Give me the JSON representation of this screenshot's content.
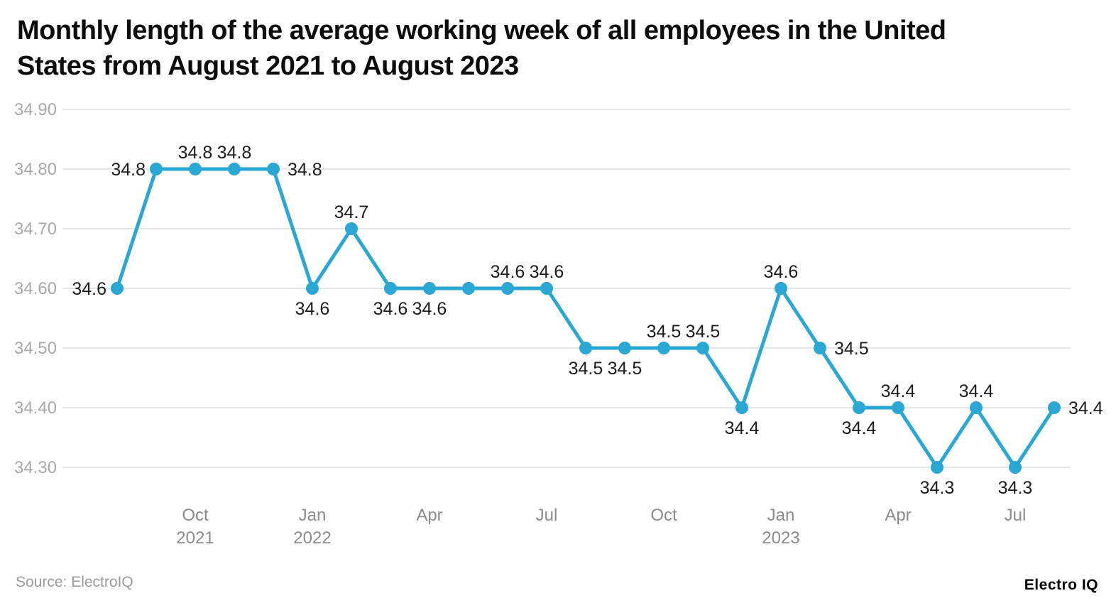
{
  "title_lines": [
    "Monthly length of the average working week of all employees in the United",
    "States from August 2021 to August 2023"
  ],
  "footer": {
    "source": "Source: ElectroIQ",
    "brand": "Electro IQ"
  },
  "chart_data": {
    "type": "line",
    "title": "Monthly length of the average working week of all employees in the United States from August 2021 to August 2023",
    "xlabel": "",
    "ylabel": "",
    "x": [
      "Aug 2021",
      "Sep 2021",
      "Oct 2021",
      "Nov 2021",
      "Dec 2021",
      "Jan 2022",
      "Feb 2022",
      "Mar 2022",
      "Apr 2022",
      "May 2022",
      "Jun 2022",
      "Jul 2022",
      "Aug 2022",
      "Sep 2022",
      "Oct 2022",
      "Nov 2022",
      "Dec 2022",
      "Jan 2023",
      "Feb 2023",
      "Mar 2023",
      "Apr 2023",
      "May 2023",
      "Jun 2023",
      "Jul 2023",
      "Aug 2023"
    ],
    "values": [
      34.6,
      34.8,
      34.8,
      34.8,
      34.8,
      34.6,
      34.7,
      34.6,
      34.6,
      34.6,
      34.6,
      34.6,
      34.5,
      34.5,
      34.5,
      34.5,
      34.4,
      34.6,
      34.5,
      34.4,
      34.4,
      34.3,
      34.4,
      34.3,
      34.4
    ],
    "data_label_positions": [
      "left",
      "left",
      "above",
      "above",
      "right",
      "below",
      "above",
      "below",
      "below",
      null,
      "above",
      "above",
      "below",
      "below",
      "above",
      "above",
      "below",
      "above",
      "right",
      "below",
      "above",
      "below",
      "above",
      "below",
      "right"
    ],
    "y_ticks": [
      "34.90",
      "34.80",
      "34.70",
      "34.60",
      "34.50",
      "34.40",
      "34.30"
    ],
    "ylim": [
      34.3,
      34.9
    ],
    "x_ticks": [
      {
        "index": 2,
        "label": "Oct",
        "year": "2021"
      },
      {
        "index": 5,
        "label": "Jan",
        "year": "2022"
      },
      {
        "index": 8,
        "label": "Apr",
        "year": ""
      },
      {
        "index": 11,
        "label": "Jul",
        "year": ""
      },
      {
        "index": 14,
        "label": "Oct",
        "year": ""
      },
      {
        "index": 17,
        "label": "Jan",
        "year": "2023"
      },
      {
        "index": 20,
        "label": "Apr",
        "year": ""
      },
      {
        "index": 23,
        "label": "Jul",
        "year": ""
      }
    ],
    "grid": true,
    "legend": false,
    "colors": {
      "line": "#2ba7d4",
      "marker": "#2ba7d4",
      "grid": "#e8e8e8",
      "y_tick_text": "#a9a9a9",
      "x_tick_text": "#8c8c8c",
      "data_label_text": "#1c1c1c"
    }
  }
}
